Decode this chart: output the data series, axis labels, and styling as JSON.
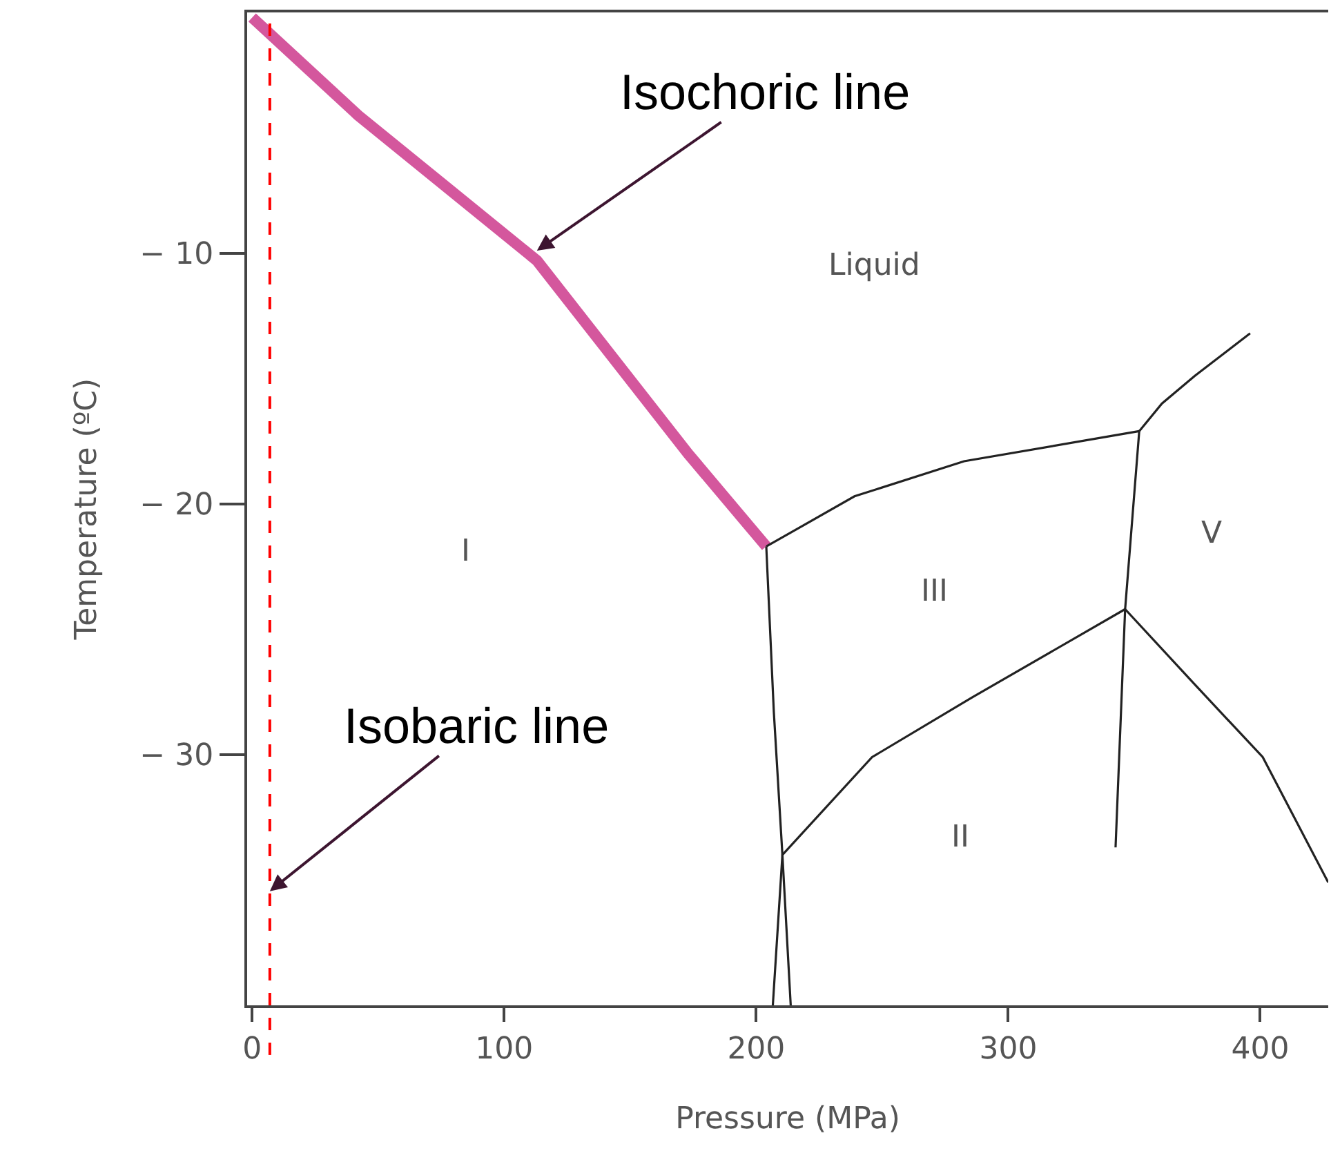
{
  "chart_data": {
    "type": "line",
    "xlabel": "Pressure (MPa)",
    "ylabel": "Temperature (ºC)",
    "xlim": [
      -2,
      427
    ],
    "ylim": [
      -40,
      -0.4
    ],
    "xticks": [
      0,
      100,
      200,
      300,
      400
    ],
    "yticks": [
      -10,
      -20,
      -30
    ],
    "marker": "none",
    "line_style": "solid",
    "series": [
      {
        "color": "#d4579d",
        "x": [
          0,
          42,
          113,
          173,
          204
        ],
        "values": [
          -0.6,
          -4.5,
          -10.3,
          -18.0,
          -21.7
        ]
      },
      {
        "color": "#222222",
        "x": [
          204,
          239,
          282.5,
          352
        ],
        "values": [
          -21.7,
          -19.7,
          -18.3,
          -17.1
        ]
      },
      {
        "color": "#222222",
        "x": [
          352,
          361,
          374,
          396
        ],
        "values": [
          -17.1,
          -16.0,
          -14.9,
          -13.2
        ]
      },
      {
        "color": "#222222",
        "x": [
          352,
          346.4,
          342.6
        ],
        "values": [
          -17.1,
          -24.2,
          -33.7
        ]
      },
      {
        "color": "#222222",
        "x": [
          346.4,
          374,
          401,
          427
        ],
        "values": [
          -24.2,
          -27.2,
          -30.1,
          -35.1
        ]
      },
      {
        "color": "#222222",
        "x": [
          346.4,
          286,
          246,
          210.4,
          213.7
        ],
        "values": [
          -24.2,
          -27.7,
          -30.1,
          -34.0,
          -40
        ]
      },
      {
        "color": "#222222",
        "x": [
          204,
          207,
          210.4,
          206.6
        ],
        "values": [
          -21.7,
          -28.3,
          -34.0,
          -40
        ]
      }
    ],
    "ref_lines": [
      {
        "axis": "x",
        "value": 7,
        "label": "Isobaric line",
        "color": "#ff0000",
        "line_style": "dashed"
      }
    ],
    "annotations": [
      {
        "text": "Isochoric line",
        "x": 113,
        "y": -9.9
      },
      "Liquid",
      "I",
      "III",
      "II",
      "V"
    ]
  }
}
